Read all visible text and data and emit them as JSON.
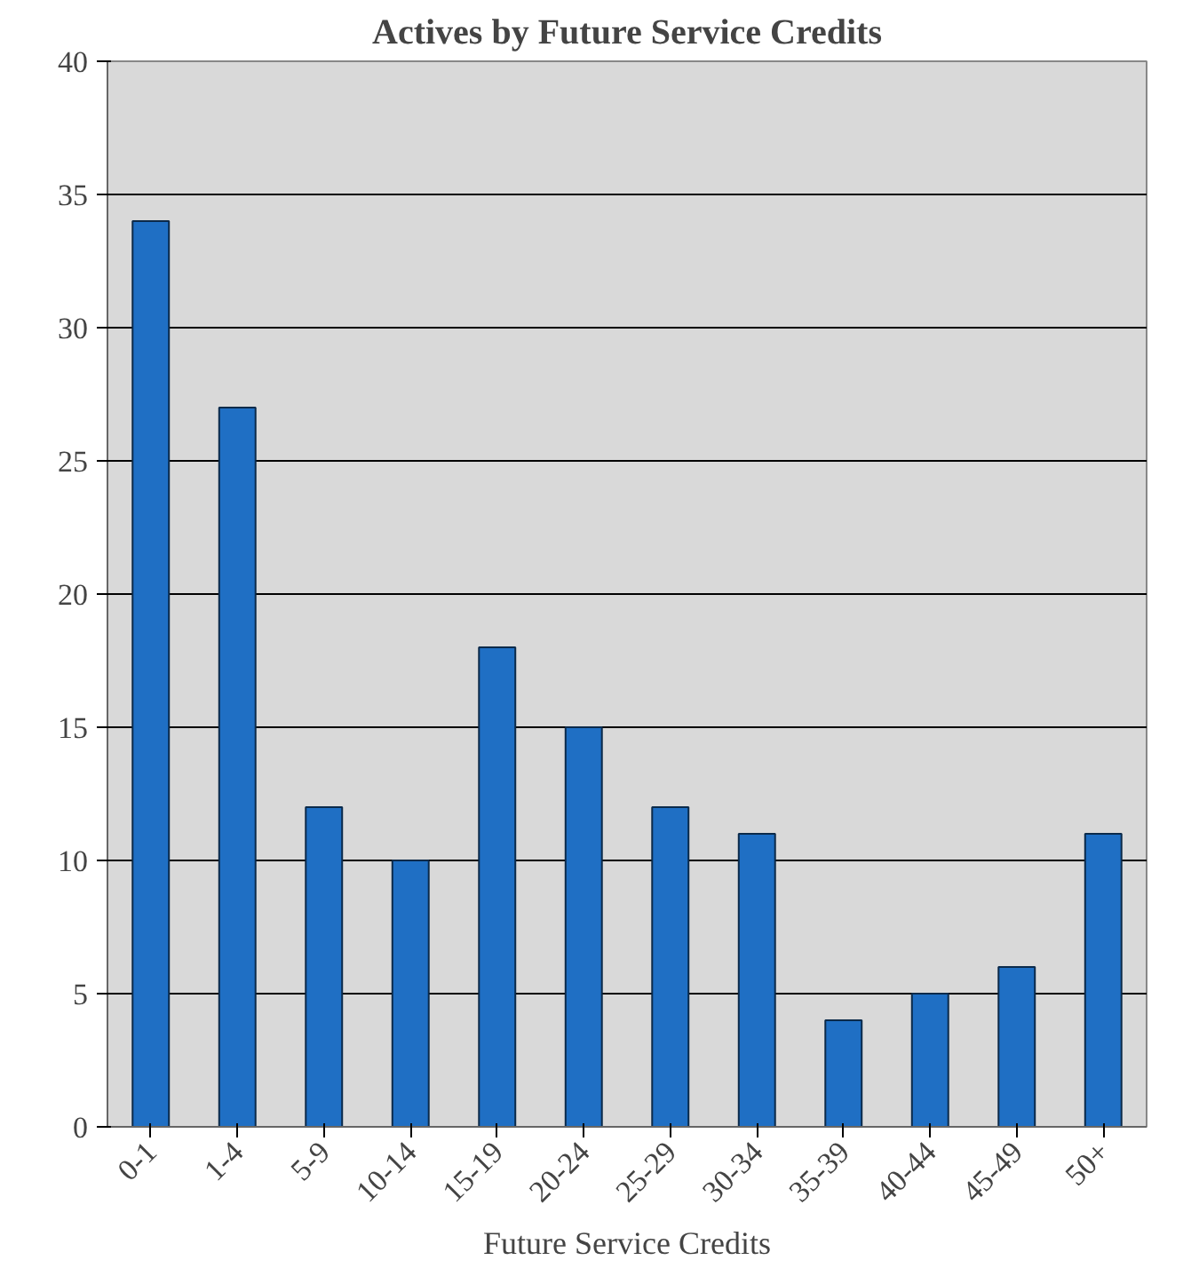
{
  "chart_data": {
    "type": "bar",
    "title": "Actives by Future Service Credits",
    "xlabel": "Future Service Credits",
    "categories": [
      "0-1",
      "1-4",
      "5-9",
      "10-14",
      "15-19",
      "20-24",
      "25-29",
      "30-34",
      "35-39",
      "40-44",
      "45-49",
      "50+"
    ],
    "values": [
      34,
      27,
      12,
      10,
      18,
      15,
      12,
      11,
      4,
      5,
      6,
      11
    ],
    "color": "#1f6fc4",
    "ylim": [
      0,
      40
    ],
    "yticks": [
      0,
      5,
      10,
      15,
      20,
      25,
      30,
      35,
      40
    ],
    "grid": "y"
  }
}
